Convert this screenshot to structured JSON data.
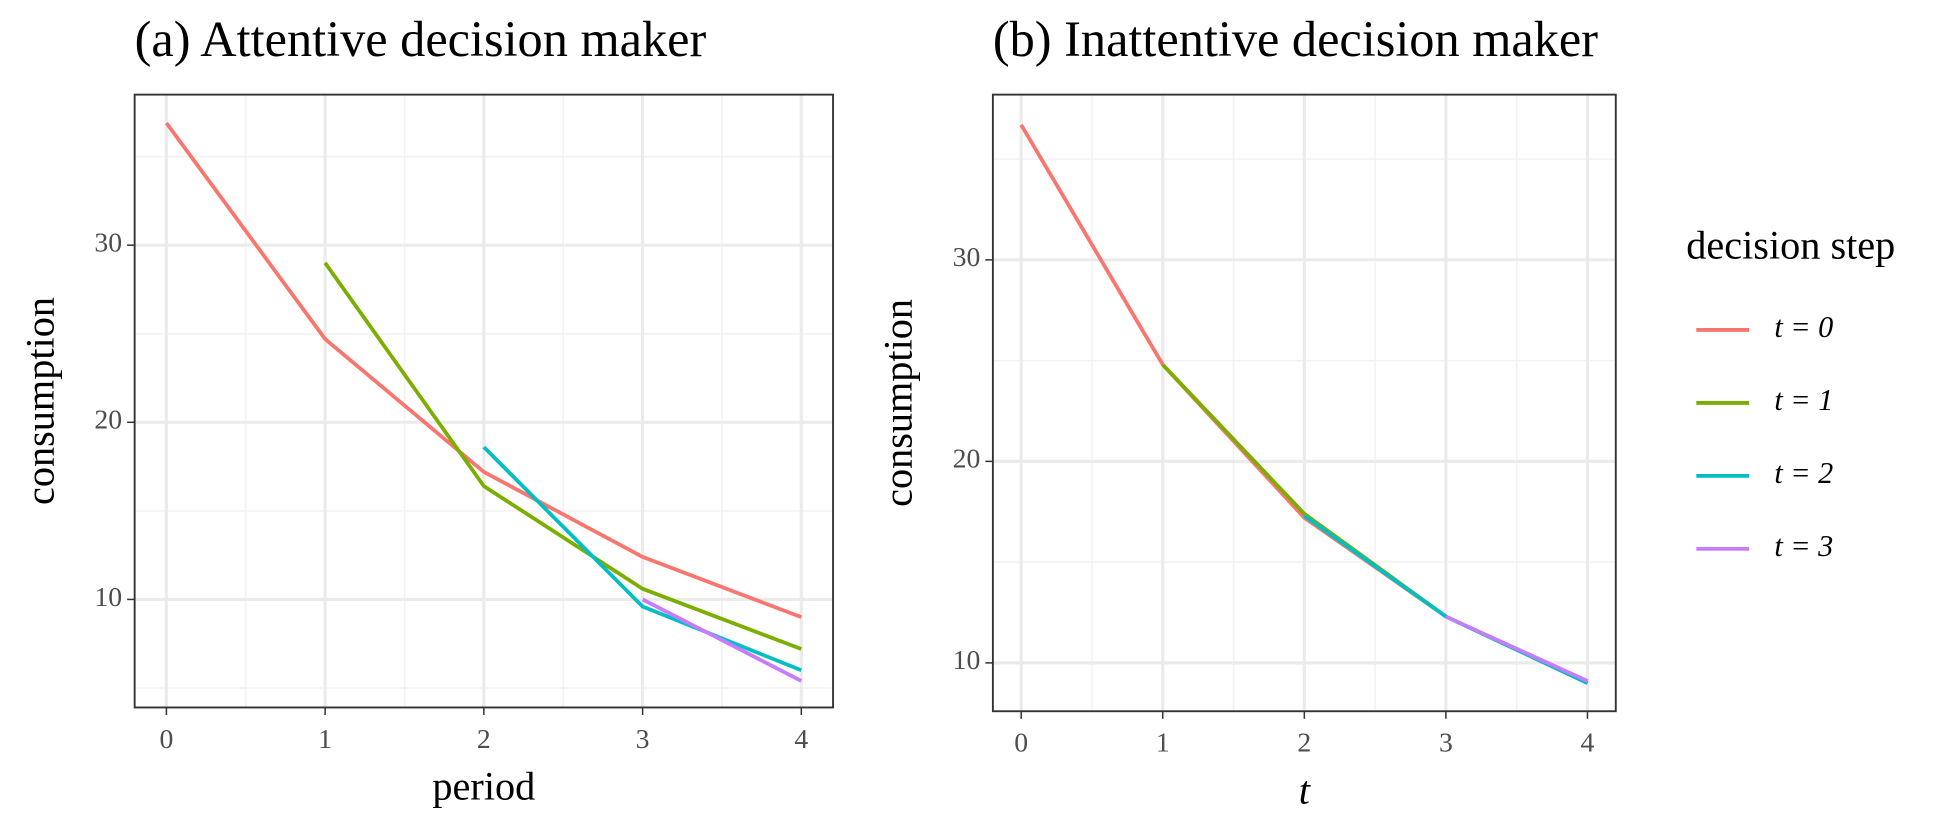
{
  "chart_data": [
    {
      "type": "line",
      "title": "(a) Attentive decision maker",
      "x_label": "period",
      "y_label": "consumption",
      "x": [
        0,
        1,
        2,
        3,
        4
      ],
      "series": [
        {
          "name": "t = 0",
          "color": "#f8766d",
          "values": [
            36.9,
            24.7,
            17.2,
            12.4,
            9.0
          ]
        },
        {
          "name": "t = 1",
          "color": "#7cae00",
          "values": [
            null,
            29.0,
            16.4,
            10.6,
            7.2
          ]
        },
        {
          "name": "t = 2",
          "color": "#00bfc4",
          "values": [
            null,
            null,
            18.6,
            9.6,
            6.0
          ]
        },
        {
          "name": "t = 3",
          "color": "#c77cff",
          "values": [
            null,
            null,
            null,
            10.0,
            5.4
          ]
        }
      ],
      "xlim": [
        -0.2,
        4.2
      ],
      "xticks": [
        0,
        1,
        2,
        3,
        4
      ],
      "ylim": [
        3.9,
        38.5
      ],
      "yticks": [
        10,
        20,
        30
      ],
      "grid": true
    },
    {
      "type": "line",
      "title": "(b) Inattentive decision maker",
      "x_label": "t",
      "y_label": "consumption",
      "x": [
        0,
        1,
        2,
        3,
        4
      ],
      "series": [
        {
          "name": "t = 0",
          "color": "#f8766d",
          "values": [
            36.7,
            24.8,
            17.2,
            12.3,
            9.0
          ]
        },
        {
          "name": "t = 1",
          "color": "#7cae00",
          "values": [
            null,
            24.8,
            17.4,
            12.3,
            9.0
          ]
        },
        {
          "name": "t = 2",
          "color": "#00bfc4",
          "values": [
            null,
            null,
            17.3,
            12.3,
            9.0
          ]
        },
        {
          "name": "t = 3",
          "color": "#c77cff",
          "values": [
            null,
            null,
            null,
            12.3,
            9.1
          ]
        }
      ],
      "xlim": [
        -0.2,
        4.2
      ],
      "xticks": [
        0,
        1,
        2,
        3,
        4
      ],
      "ylim": [
        7.6,
        38.2
      ],
      "yticks": [
        10,
        20,
        30
      ],
      "grid": true,
      "legend_title": "decision step",
      "legend": "right"
    }
  ]
}
